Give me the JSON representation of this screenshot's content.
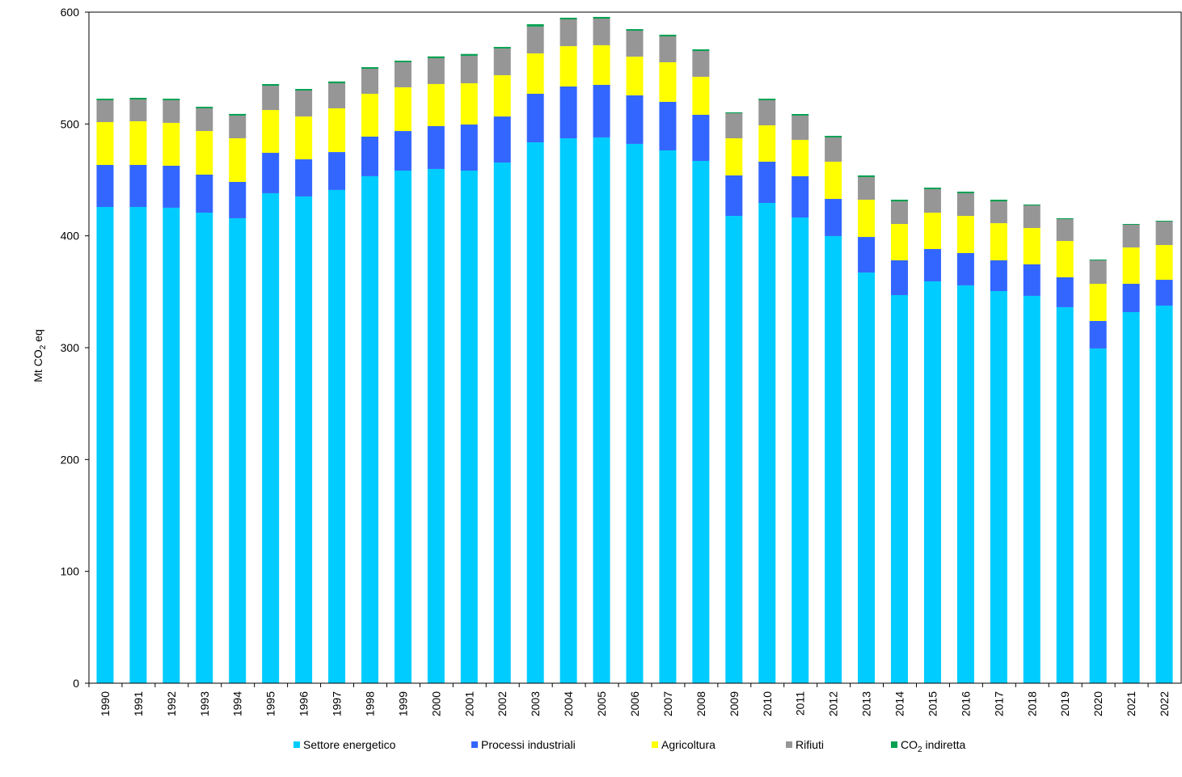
{
  "chart_data": {
    "type": "bar",
    "stacked": true,
    "title": "",
    "xlabel": "",
    "ylabel": "Mt CO2 eq",
    "ylabel_parts": {
      "main": "Mt CO",
      "sub": "2",
      "rest": " eq"
    },
    "ylim": [
      0,
      600
    ],
    "yticks": [
      0,
      100,
      200,
      300,
      400,
      500,
      600
    ],
    "legend_position": "bottom",
    "categories": [
      "1990",
      "1991",
      "1992",
      "1993",
      "1994",
      "1995",
      "1996",
      "1997",
      "1998",
      "1999",
      "2000",
      "2001",
      "2002",
      "2003",
      "2004",
      "2005",
      "2006",
      "2007",
      "2008",
      "2009",
      "2010",
      "2011",
      "2012",
      "2013",
      "2014",
      "2015",
      "2016",
      "2017",
      "2018",
      "2019",
      "2020",
      "2021",
      "2022"
    ],
    "series": [
      {
        "name": "Settore energetico",
        "color": "#00CCFF",
        "values": [
          425.8,
          425.8,
          425.1,
          420.7,
          415.7,
          438.1,
          435.2,
          441.0,
          453.3,
          458.3,
          459.8,
          458.3,
          465.5,
          483.6,
          487.2,
          488.0,
          482.2,
          476.4,
          467.0,
          417.8,
          429.4,
          416.4,
          399.8,
          367.2,
          347.0,
          359.3,
          355.7,
          350.6,
          346.3,
          336.2,
          299.3,
          331.8,
          337.6
        ]
      },
      {
        "name": "Processi industriali",
        "color": "#3366FF",
        "values": [
          37.6,
          37.6,
          37.6,
          34.0,
          32.5,
          36.1,
          33.2,
          33.9,
          35.4,
          35.4,
          38.3,
          41.2,
          41.2,
          43.4,
          46.3,
          47.0,
          43.4,
          43.4,
          41.2,
          36.2,
          36.9,
          36.9,
          33.2,
          31.8,
          31.1,
          28.9,
          28.9,
          27.5,
          28.2,
          26.7,
          24.6,
          25.3,
          23.1
        ]
      },
      {
        "name": "Agricoltura",
        "color": "#FFFF00",
        "values": [
          38.3,
          39.0,
          38.3,
          39.0,
          39.0,
          38.3,
          38.3,
          39.1,
          38.3,
          39.1,
          37.6,
          36.9,
          36.9,
          36.1,
          36.1,
          35.4,
          34.6,
          35.4,
          34.0,
          33.2,
          32.5,
          32.5,
          33.3,
          33.3,
          32.5,
          32.5,
          33.2,
          33.2,
          32.5,
          32.5,
          33.2,
          32.5,
          31.1
        ]
      },
      {
        "name": "Rifiuti",
        "color": "#969696",
        "values": [
          19.5,
          19.5,
          20.2,
          20.3,
          20.3,
          21.7,
          23.2,
          22.4,
          22.4,
          22.4,
          23.1,
          24.6,
          23.9,
          24.0,
          23.9,
          23.8,
          23.2,
          23.1,
          23.1,
          22.4,
          22.4,
          21.7,
          21.7,
          20.2,
          20.2,
          21.0,
          20.3,
          19.5,
          20.2,
          19.5,
          21.0,
          20.3,
          21.0
        ]
      },
      {
        "name": "CO2 indiretta",
        "name_parts": {
          "main": "CO",
          "sub": "2",
          "rest": " indiretta"
        },
        "color": "#00A050",
        "values": [
          1.4,
          1.5,
          1.4,
          1.4,
          1.5,
          1.5,
          1.4,
          1.6,
          1.4,
          1.4,
          1.6,
          1.6,
          1.4,
          2.1,
          1.5,
          1.5,
          1.4,
          1.5,
          1.4,
          0.8,
          1.4,
          1.4,
          1.4,
          1.5,
          1.5,
          1.4,
          1.4,
          1.5,
          0.8,
          0.8,
          0.7,
          0.7,
          0.7
        ]
      }
    ]
  }
}
